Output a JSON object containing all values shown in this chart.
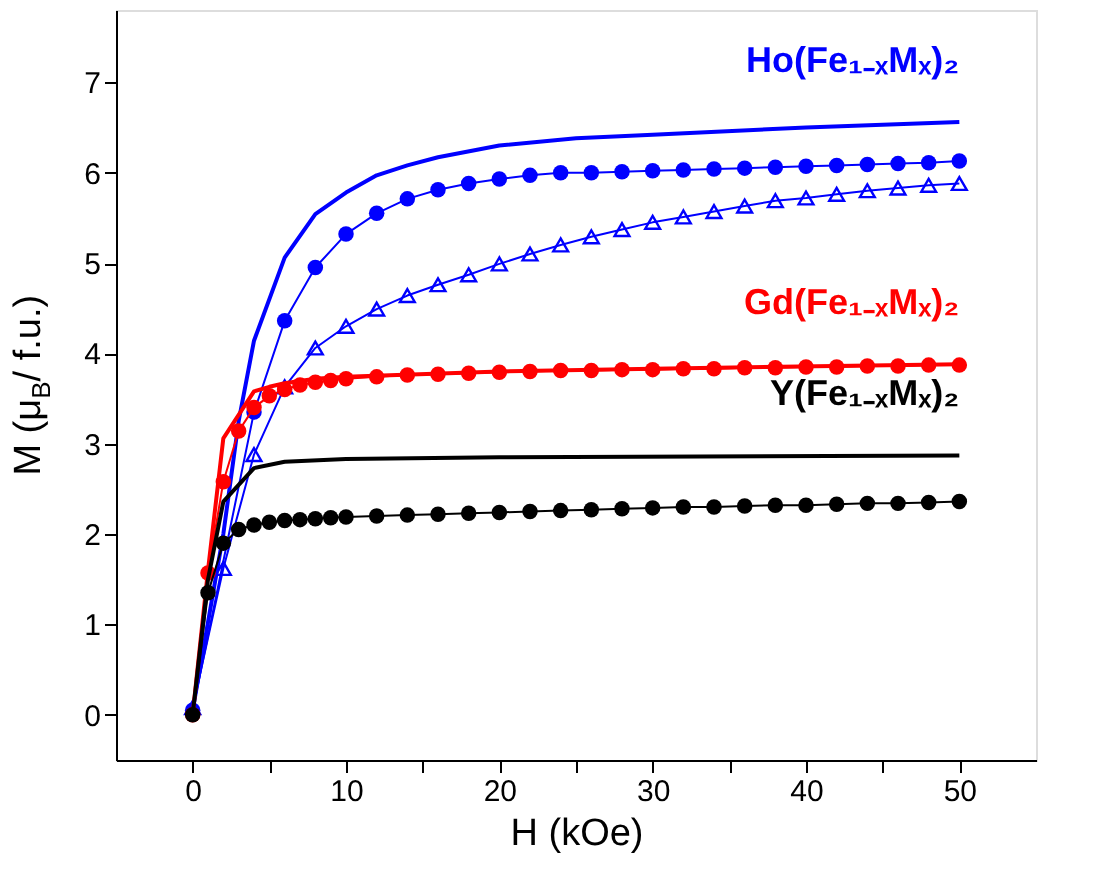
{
  "chart_data": {
    "type": "line",
    "xlabel": "H (kOe)",
    "ylabel": "M (μ$_{B}$/ f.u.)",
    "xlim": [
      -5,
      55
    ],
    "ylim": [
      -0.5,
      7.8
    ],
    "xticks": [
      0,
      {
        "value": 5,
        "label": null
      },
      10,
      {
        "value": 15,
        "label": null
      },
      20,
      {
        "value": 25,
        "label": null
      },
      30,
      {
        "value": 35,
        "label": null
      },
      40,
      {
        "value": 45,
        "label": null
      },
      50
    ],
    "yticks": [
      0,
      1,
      2,
      3,
      4,
      5,
      6,
      7
    ],
    "grid": false,
    "line_style": "solid",
    "series": [
      {
        "name": "Ho(Fe₁₋ₓMₓ)₂",
        "color": "#0000ff",
        "marker": "none",
        "x": [
          0,
          2,
          3,
          4,
          6,
          8,
          10,
          12,
          14,
          16,
          20,
          25,
          30,
          40,
          50
        ],
        "values": [
          0.05,
          2.0,
          3.25,
          4.14,
          5.06,
          5.54,
          5.78,
          5.97,
          6.08,
          6.17,
          6.3,
          6.38,
          6.42,
          6.5,
          6.56
        ]
      },
      {
        "color": "#0000ff",
        "marker": "circle",
        "x": [
          0,
          4,
          6,
          8,
          10,
          12,
          14,
          16,
          18,
          20,
          22,
          24,
          26,
          28,
          30,
          32,
          34,
          36,
          38,
          40,
          42,
          44,
          46,
          48,
          50
        ],
        "values": [
          0.05,
          3.35,
          4.36,
          4.95,
          5.32,
          5.55,
          5.71,
          5.81,
          5.88,
          5.93,
          5.97,
          6.0,
          6.0,
          6.01,
          6.02,
          6.03,
          6.04,
          6.05,
          6.06,
          6.07,
          6.08,
          6.09,
          6.1,
          6.11,
          6.13
        ]
      },
      {
        "color": "#0000ff",
        "marker": "triangle",
        "x": [
          0,
          2,
          4,
          6,
          8,
          10,
          12,
          14,
          16,
          18,
          20,
          22,
          24,
          26,
          28,
          30,
          32,
          34,
          36,
          38,
          40,
          42,
          44,
          46,
          48,
          50
        ],
        "values": [
          0.08,
          1.62,
          2.88,
          3.63,
          4.06,
          4.3,
          4.49,
          4.64,
          4.76,
          4.87,
          4.99,
          5.1,
          5.2,
          5.29,
          5.37,
          5.45,
          5.51,
          5.57,
          5.63,
          5.69,
          5.72,
          5.76,
          5.8,
          5.83,
          5.86,
          5.88
        ]
      },
      {
        "name": "Gd(Fe₁₋ₓMₓ)₂",
        "color": "#ff0000",
        "marker": "none",
        "x": [
          0,
          1,
          2,
          3,
          4,
          5,
          6,
          8,
          10,
          20,
          30,
          50
        ],
        "values": [
          0.0,
          1.6,
          3.06,
          3.32,
          3.58,
          3.63,
          3.67,
          3.72,
          3.74,
          3.8,
          3.83,
          3.88
        ]
      },
      {
        "color": "#ff0000",
        "marker": "circle",
        "x": [
          0,
          1,
          2,
          3,
          4,
          5,
          6,
          7,
          8,
          9,
          10,
          12,
          14,
          16,
          18,
          20,
          22,
          24,
          26,
          28,
          30,
          32,
          34,
          36,
          38,
          40,
          42,
          44,
          46,
          48,
          50
        ],
        "values": [
          0.0,
          1.57,
          2.58,
          3.14,
          3.4,
          3.53,
          3.6,
          3.65,
          3.68,
          3.7,
          3.72,
          3.74,
          3.76,
          3.77,
          3.78,
          3.79,
          3.8,
          3.81,
          3.81,
          3.82,
          3.82,
          3.83,
          3.83,
          3.84,
          3.84,
          3.85,
          3.85,
          3.86,
          3.86,
          3.87,
          3.87
        ]
      },
      {
        "name": "Y(Fe₁₋ₓMₓ)₂",
        "color": "#000000",
        "marker": "none",
        "x": [
          0,
          1,
          2,
          4,
          6,
          10,
          20,
          50
        ],
        "values": [
          0.0,
          1.5,
          2.36,
          2.73,
          2.8,
          2.83,
          2.85,
          2.87
        ]
      },
      {
        "color": "#000000",
        "marker": "circle",
        "x": [
          0,
          1,
          2,
          3,
          4,
          5,
          6,
          7,
          8,
          9,
          10,
          12,
          14,
          16,
          18,
          20,
          22,
          24,
          26,
          28,
          30,
          32,
          34,
          36,
          38,
          40,
          42,
          44,
          46,
          48,
          50
        ],
        "values": [
          0.0,
          1.35,
          1.9,
          2.05,
          2.1,
          2.13,
          2.15,
          2.16,
          2.17,
          2.18,
          2.19,
          2.2,
          2.21,
          2.22,
          2.23,
          2.24,
          2.25,
          2.26,
          2.27,
          2.28,
          2.29,
          2.3,
          2.3,
          2.31,
          2.32,
          2.32,
          2.33,
          2.34,
          2.34,
          2.35,
          2.36
        ]
      }
    ]
  }
}
